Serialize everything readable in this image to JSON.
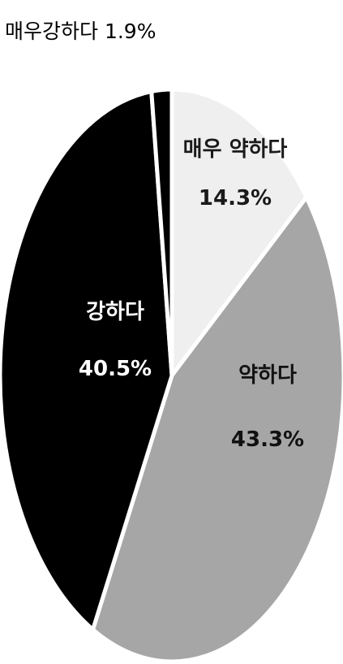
{
  "chart_data": {
    "type": "pie",
    "start": "top, clockwise",
    "slices": [
      {
        "label": "매우 약하다",
        "value": 14.3,
        "value_label": "14.3%",
        "color": "#efefef",
        "text_color": "#1a1a1a"
      },
      {
        "label": "약하다",
        "value": 43.3,
        "value_label": "43.3%",
        "color": "#a6a6a6",
        "text_color": "#111111"
      },
      {
        "label": "강하다",
        "value": 40.5,
        "value_label": "40.5%",
        "color": "#000000",
        "text_color": "#ffffff"
      },
      {
        "label": "매우강하다",
        "value": 1.9,
        "value_label": "1.9%",
        "color": "#000000",
        "text_color": "#000000",
        "outside": true
      }
    ]
  }
}
